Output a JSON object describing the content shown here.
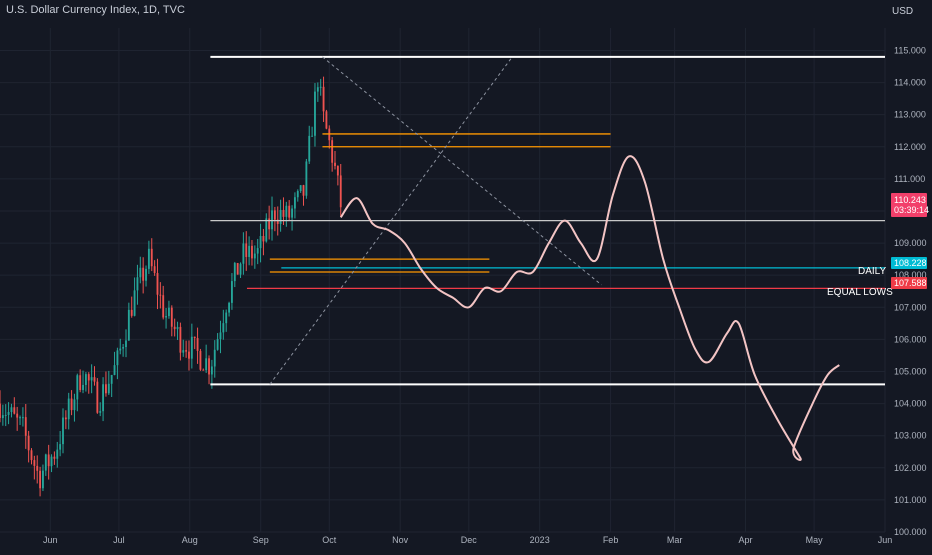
{
  "header": {
    "title": "U.S. Dollar Currency Index, 1D, TVC",
    "currency": "USD"
  },
  "colors": {
    "background": "#141823",
    "candle_up": "#26a69a",
    "candle_down": "#ef5350",
    "projection": "#f3c4c4",
    "daily_line": "#00bcd4",
    "equal_lows_line": "#ef3b47",
    "orange_lines": "#ff9800",
    "white_lines": "#ffffff",
    "price_tag": "#f23f6a"
  },
  "chart_data": {
    "type": "candlestick",
    "y_axis": {
      "range": [
        100.0,
        115.7
      ],
      "ticks": [
        "115.000",
        "114.000",
        "113.000",
        "112.000",
        "111.000",
        "110.000",
        "109.000",
        "108.000",
        "107.000",
        "106.000",
        "105.000",
        "104.000",
        "103.000",
        "102.000",
        "101.000",
        "100.000"
      ],
      "tick_values": [
        115,
        114,
        113,
        112,
        111,
        110,
        109,
        108,
        107,
        106,
        105,
        104,
        103,
        102,
        101,
        100
      ]
    },
    "x_axis": {
      "range": [
        "2022-05-10",
        "2023-06-01"
      ],
      "ticks": [
        {
          "label": "Jun",
          "date": "2022-06-01"
        },
        {
          "label": "Jul",
          "date": "2022-07-01"
        },
        {
          "label": "Aug",
          "date": "2022-08-01"
        },
        {
          "label": "Sep",
          "date": "2022-09-01"
        },
        {
          "label": "Oct",
          "date": "2022-10-01"
        },
        {
          "label": "Nov",
          "date": "2022-11-01"
        },
        {
          "label": "Dec",
          "date": "2022-12-01"
        },
        {
          "label": "2023",
          "date": "2023-01-01"
        },
        {
          "label": "Feb",
          "date": "2023-02-01"
        },
        {
          "label": "Mar",
          "date": "2023-03-01"
        },
        {
          "label": "Apr",
          "date": "2023-04-01"
        },
        {
          "label": "May",
          "date": "2023-05-01"
        },
        {
          "label": "Jun",
          "date": "2023-06-01"
        }
      ]
    },
    "price_path": [
      {
        "date": "2022-05-10",
        "close": 104.0
      },
      {
        "date": "2022-05-20",
        "close": 103.2
      },
      {
        "date": "2022-05-27",
        "close": 101.7
      },
      {
        "date": "2022-06-03",
        "close": 102.5
      },
      {
        "date": "2022-06-15",
        "close": 105.0
      },
      {
        "date": "2022-06-22",
        "close": 104.1
      },
      {
        "date": "2022-06-30",
        "close": 105.2
      },
      {
        "date": "2022-07-07",
        "close": 107.2
      },
      {
        "date": "2022-07-14",
        "close": 108.5
      },
      {
        "date": "2022-07-21",
        "close": 106.8
      },
      {
        "date": "2022-07-28",
        "close": 106.0
      },
      {
        "date": "2022-08-02",
        "close": 105.7
      },
      {
        "date": "2022-08-10",
        "close": 105.2
      },
      {
        "date": "2022-08-17",
        "close": 107.2
      },
      {
        "date": "2022-08-24",
        "close": 108.6
      },
      {
        "date": "2022-08-31",
        "close": 108.7
      },
      {
        "date": "2022-09-07",
        "close": 110.0
      },
      {
        "date": "2022-09-13",
        "close": 109.8
      },
      {
        "date": "2022-09-20",
        "close": 110.6
      },
      {
        "date": "2022-09-26",
        "close": 114.2
      },
      {
        "date": "2022-09-28",
        "close": 113.0
      },
      {
        "date": "2022-10-03",
        "close": 111.5
      },
      {
        "date": "2022-10-06",
        "close": 110.2
      }
    ],
    "candles": {
      "count": 120,
      "up_color": "#26a69a",
      "down_color": "#ef5350"
    },
    "projection_path": [
      {
        "date": "2022-10-06",
        "value": 109.8
      },
      {
        "date": "2022-10-13",
        "value": 110.4
      },
      {
        "date": "2022-10-20",
        "value": 109.6
      },
      {
        "date": "2022-10-27",
        "value": 109.4
      },
      {
        "date": "2022-11-03",
        "value": 109.0
      },
      {
        "date": "2022-11-10",
        "value": 108.2
      },
      {
        "date": "2022-11-17",
        "value": 107.6
      },
      {
        "date": "2022-11-24",
        "value": 107.3
      },
      {
        "date": "2022-12-01",
        "value": 107.0
      },
      {
        "date": "2022-12-08",
        "value": 107.6
      },
      {
        "date": "2022-12-15",
        "value": 107.5
      },
      {
        "date": "2022-12-22",
        "value": 108.1
      },
      {
        "date": "2022-12-29",
        "value": 108.1
      },
      {
        "date": "2023-01-05",
        "value": 109.0
      },
      {
        "date": "2023-01-12",
        "value": 109.7
      },
      {
        "date": "2023-01-19",
        "value": 109.0
      },
      {
        "date": "2023-01-26",
        "value": 108.5
      },
      {
        "date": "2023-02-02",
        "value": 110.5
      },
      {
        "date": "2023-02-09",
        "value": 111.7
      },
      {
        "date": "2023-02-16",
        "value": 110.9
      },
      {
        "date": "2023-02-24",
        "value": 108.5
      },
      {
        "date": "2023-03-03",
        "value": 107.0
      },
      {
        "date": "2023-03-10",
        "value": 105.7
      },
      {
        "date": "2023-03-16",
        "value": 105.3
      },
      {
        "date": "2023-03-24",
        "value": 106.2
      },
      {
        "date": "2023-03-29",
        "value": 106.5
      },
      {
        "date": "2023-04-05",
        "value": 104.9
      },
      {
        "date": "2023-04-15",
        "value": 103.5
      },
      {
        "date": "2023-04-25",
        "value": 102.3
      },
      {
        "date": "2023-04-22",
        "value": 102.6
      },
      {
        "date": "2023-05-01",
        "value": 104.1
      },
      {
        "date": "2023-05-07",
        "value": 104.9
      },
      {
        "date": "2023-05-12",
        "value": 105.2
      }
    ],
    "levels": [
      {
        "name": "top-line",
        "value": 114.8,
        "from": "2022-08-10",
        "to": "2023-06-01",
        "color": "#ffffff"
      },
      {
        "name": "mid-line",
        "value": 109.7,
        "from": "2022-08-10",
        "to": "2023-06-01",
        "color": "#c8c8c8"
      },
      {
        "name": "bottom-line",
        "value": 104.6,
        "from": "2022-08-10",
        "to": "2023-06-01",
        "color": "#ffffff"
      },
      {
        "name": "daily-line",
        "value": 108.228,
        "from": "2022-09-10",
        "to": "2023-06-01",
        "color": "#00bcd4"
      },
      {
        "name": "equal-lows-line",
        "value": 107.588,
        "from": "2022-08-26",
        "to": "2023-06-01",
        "color": "#ef3b47"
      },
      {
        "name": "orange-1",
        "value": 112.4,
        "from": "2022-09-28",
        "to": "2023-02-01",
        "color": "#ff9800"
      },
      {
        "name": "orange-2",
        "value": 112.0,
        "from": "2022-09-28",
        "to": "2023-02-01",
        "color": "#ff9800"
      },
      {
        "name": "orange-3",
        "value": 108.5,
        "from": "2022-09-05",
        "to": "2022-12-10",
        "color": "#ff9800"
      },
      {
        "name": "orange-4",
        "value": 108.1,
        "from": "2022-09-05",
        "to": "2022-12-10",
        "color": "#ff9800"
      }
    ],
    "diagonals": [
      {
        "name": "diag-down",
        "from": {
          "date": "2022-09-28",
          "value": 114.8
        },
        "to": {
          "date": "2023-01-28",
          "value": 107.7
        }
      },
      {
        "name": "diag-up",
        "from": {
          "date": "2022-09-05",
          "value": 104.6
        },
        "to": {
          "date": "2022-12-20",
          "value": 114.8
        }
      }
    ],
    "annotations": {
      "daily_label": "DAILY",
      "equal_lows_label": "EQUAL LOWS"
    },
    "price_tags": {
      "current_price": "110.243",
      "countdown": "03:39:14",
      "daily_price": "108.228",
      "equal_lows_price": "107.588"
    }
  }
}
